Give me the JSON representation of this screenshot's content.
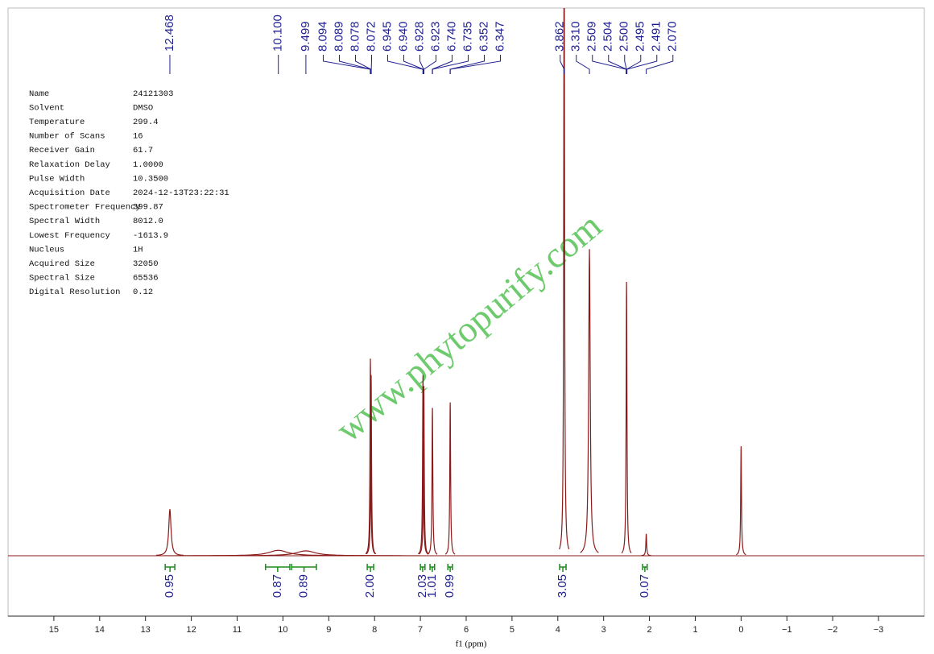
{
  "chart_data": {
    "type": "nmr",
    "x_label": "f1 (ppm)",
    "watermark": "www.phytopurify.com",
    "color": "#8b1a1a",
    "xlim": [
      16,
      -4
    ],
    "ylim": [
      0,
      100
    ],
    "xticks": [
      15,
      14,
      13,
      12,
      11,
      10,
      9,
      8,
      7,
      6,
      5,
      4,
      3,
      2,
      1,
      0,
      {
        "value": -1,
        "label": "−1"
      },
      {
        "value": -2,
        "label": "−2"
      },
      {
        "value": -3,
        "label": "−3"
      }
    ],
    "parameters": [
      [
        "Name",
        "24121303"
      ],
      [
        "Solvent",
        "DMSO"
      ],
      [
        "Temperature",
        "299.4"
      ],
      [
        "Number of Scans",
        "16"
      ],
      [
        "Receiver Gain",
        "61.7"
      ],
      [
        "Relaxation Delay",
        "1.0000"
      ],
      [
        "Pulse Width",
        "10.3500"
      ],
      [
        "Acquisition Date",
        "2024-12-13T23:22:31"
      ],
      [
        "Spectrometer Frequency",
        "399.87"
      ],
      [
        "Spectral Width",
        "8012.0"
      ],
      [
        "Lowest Frequency",
        "-1613.9"
      ],
      [
        "Nucleus",
        "1H"
      ],
      [
        "Acquired Size",
        "32050"
      ],
      [
        "Spectral Size",
        "65536"
      ],
      [
        "Digital Resolution",
        "0.12"
      ]
    ],
    "peak_labels": [
      12.468,
      {
        "value": 10.1,
        "label": "10.100"
      },
      9.499,
      8.094,
      8.089,
      8.078,
      8.072,
      6.945,
      {
        "value": 6.94,
        "label": "6.940"
      },
      6.928,
      6.923,
      {
        "value": 6.74,
        "label": "6.740"
      },
      6.735,
      6.352,
      6.347,
      3.862,
      {
        "value": 3.31,
        "label": "3.310"
      },
      2.509,
      2.504,
      {
        "value": 2.5,
        "label": "2.500"
      },
      2.495,
      2.491,
      {
        "value": 2.07,
        "label": "2.070"
      }
    ],
    "signals": [
      {
        "ppm": 12.468,
        "height": 8.5,
        "width": 0.03
      },
      {
        "ppm": 10.1,
        "height": 1,
        "width": 0.25
      },
      {
        "ppm": 9.5,
        "height": 0.9,
        "width": 0.25
      },
      {
        "ppm": 8.091,
        "height": 36,
        "width": 0.006
      },
      {
        "ppm": 8.075,
        "height": 33,
        "width": 0.006
      },
      {
        "ppm": 6.943,
        "height": 33,
        "width": 0.006
      },
      {
        "ppm": 6.925,
        "height": 31,
        "width": 0.006
      },
      {
        "ppm": 6.737,
        "height": 27,
        "width": 0.006
      },
      {
        "ppm": 6.349,
        "height": 28,
        "width": 0.006
      },
      {
        "ppm": 3.862,
        "height": 120,
        "width": 0.006
      },
      {
        "ppm": 3.31,
        "height": 56,
        "width": 0.02
      },
      {
        "ppm": 2.5,
        "height": 50,
        "width": 0.008
      },
      {
        "ppm": 2.07,
        "height": 4,
        "width": 0.006
      },
      {
        "ppm": 0,
        "height": 20,
        "width": 0.006
      }
    ],
    "integrals": {
      "ranges": [
        [
          12.57,
          12.36
        ],
        [
          10.38,
          9.85
        ],
        [
          9.81,
          9.27
        ],
        [
          8.16,
          8.02
        ],
        [
          7.0,
          6.9
        ],
        [
          6.79,
          6.69
        ],
        [
          6.4,
          6.3
        ],
        [
          3.96,
          3.82
        ],
        [
          2.15,
          2.05
        ]
      ],
      "values": [
        0.95,
        0.87,
        0.89,
        2,
        2.03,
        1.01,
        0.99,
        3.05,
        0.07
      ],
      "value_labels": [
        "0.95",
        "0.87",
        "0.89",
        "2.00",
        "2.03",
        "1.01",
        "0.99",
        "3.05",
        "0.07"
      ]
    }
  }
}
